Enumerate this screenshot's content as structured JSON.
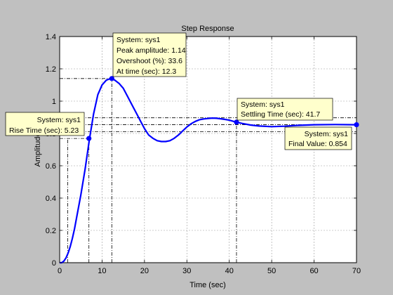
{
  "chart_data": {
    "type": "line",
    "title": "Step Response",
    "xlabel": "Time (sec)",
    "ylabel": "Amplitude",
    "xlim": [
      0,
      70
    ],
    "ylim": [
      0,
      1.4
    ],
    "xticks": [
      0,
      10,
      20,
      30,
      40,
      50,
      60,
      70
    ],
    "yticks": [
      0,
      0.2,
      0.4,
      0.6,
      0.8,
      1,
      1.2,
      1.4
    ],
    "grid": true,
    "colors": {
      "background": "#c0c0c0",
      "axes": "#ffffff",
      "line": "#0000ff",
      "tip_bg": "#ffffcc"
    },
    "series": [
      {
        "x": [
          0,
          0.5,
          1,
          1.5,
          2,
          2.5,
          3,
          3.5,
          4,
          5,
          6,
          7,
          8,
          9,
          10,
          11,
          12,
          12.3,
          13,
          14,
          15,
          16,
          17,
          18,
          19,
          20,
          21,
          22,
          23,
          24,
          25,
          26,
          27,
          28,
          29,
          30,
          31,
          32,
          33,
          34,
          35,
          36,
          37,
          38,
          39,
          40,
          41,
          41.7,
          43,
          45,
          47,
          50,
          53,
          56,
          60,
          65,
          70
        ],
        "y": [
          0,
          0.0,
          0.01,
          0.03,
          0.06,
          0.1,
          0.15,
          0.21,
          0.28,
          0.42,
          0.58,
          0.76,
          0.92,
          1.04,
          1.1,
          1.13,
          1.14,
          1.14,
          1.13,
          1.11,
          1.08,
          1.03,
          0.98,
          0.93,
          0.88,
          0.83,
          0.79,
          0.77,
          0.755,
          0.75,
          0.75,
          0.755,
          0.77,
          0.79,
          0.815,
          0.84,
          0.86,
          0.875,
          0.885,
          0.89,
          0.893,
          0.895,
          0.894,
          0.891,
          0.887,
          0.882,
          0.875,
          0.87,
          0.862,
          0.852,
          0.846,
          0.842,
          0.845,
          0.85,
          0.854,
          0.855,
          0.854
        ]
      }
    ],
    "markers": [
      {
        "x": 6.9,
        "y": 0.769,
        "type": "rise"
      },
      {
        "x": 12.3,
        "y": 1.14,
        "type": "peak"
      },
      {
        "x": 41.7,
        "y": 0.87,
        "type": "settling"
      },
      {
        "x": 70,
        "y": 0.854,
        "type": "final"
      }
    ],
    "reference_lines": [
      {
        "kind": "h",
        "y": 1.14,
        "x0": 0,
        "x1": 12.3
      },
      {
        "kind": "v",
        "x": 12.3,
        "y0": 0,
        "y1": 1.14
      },
      {
        "kind": "h",
        "y": 0.769,
        "x0": 0,
        "x1": 6.9
      },
      {
        "kind": "v",
        "x": 1.9,
        "y0": 0,
        "y1": 0.769
      },
      {
        "kind": "v",
        "x": 6.9,
        "y0": 0,
        "y1": 0.769
      },
      {
        "kind": "h",
        "y": 0.897,
        "x0": 0,
        "x1": 70
      },
      {
        "kind": "h",
        "y": 0.811,
        "x0": 0,
        "x1": 70
      },
      {
        "kind": "h",
        "y": 0.854,
        "x0": 0,
        "x1": 70
      },
      {
        "kind": "v",
        "x": 41.7,
        "y0": 0,
        "y1": 0.87
      }
    ],
    "annotations": [
      {
        "name": "peak-datatip",
        "lines": [
          "System: sys1",
          "Peak amplitude: 1.14",
          "Overshoot (%): 33.6",
          "At time (sec): 12.3"
        ]
      },
      {
        "name": "rise-time-datatip",
        "lines": [
          "System: sys1",
          "Rise Time (sec): 5.23"
        ]
      },
      {
        "name": "settling-time-datatip",
        "lines": [
          "System: sys1",
          "Settling Time (sec): 41.7"
        ]
      },
      {
        "name": "final-value-datatip",
        "lines": [
          "System: sys1",
          "Final Value: 0.854"
        ]
      }
    ]
  }
}
